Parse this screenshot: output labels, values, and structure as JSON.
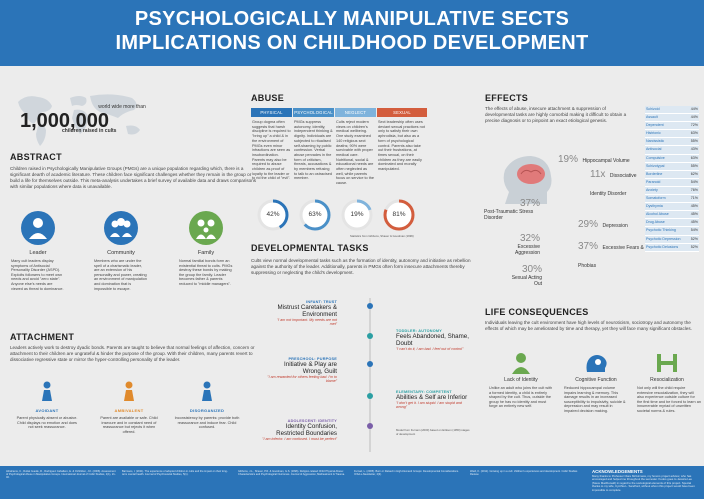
{
  "header": {
    "title_line1": "PSYCHOLOGICALLY MANIPULATIVE SECTS",
    "title_line2": "IMPLICATIONS ON CHILDHOOD DEVELOPMENT"
  },
  "stat": {
    "top": "world wide more than",
    "big": "1,000,000",
    "bottom": "children raised in cults"
  },
  "abstract": {
    "heading": "ABSTRACT",
    "text": "Children raised in Psychologically Manipulative Groups (PMGs) are a unique population regarding which, there is a significant dearth of academic literature. These children face significant challenges whether they remain in the group or build a life for themselves outside. This meta-analysis undertakes a brief survey of available data and draws comparisons with similar populations where data is unavailable.",
    "items": [
      {
        "label": "Leader",
        "text": "Many cult leaders display symptoms of Antisocial Personality Disorder (ASPD). Exploits followers to meet own needs and avoid \"zero state\". Anyone else's needs are viewed as threat to dominance.",
        "color": "#2b74b8"
      },
      {
        "label": "Community",
        "text": "Members who are under the spell of a charismatic leader, are an extension of his personality and power, creating an environment of manipulation and domination that is impossible to escape.",
        "color": "#2b74b8"
      },
      {
        "label": "Family",
        "text": "Normal familial bonds form an existential threat to cults. PMGs destroy these bonds by making the group the family. Leader becomes father & parents reduced to \"middle managers\".",
        "color": "#6aa84f"
      }
    ]
  },
  "attachment": {
    "heading": "ATTACHMENT",
    "text": "Leaders actively work to destroy dyadic bonds. Parents are taught to believe that normal feelings of affection, concern or attachment to their children are ungrateful & hinder the purpose of the group. With their children, many parents revert to dissociative regressive state or mirror the hyper-controlling personality of the leader.",
    "items": [
      {
        "label": "AVOIDANT",
        "text": "Parent physically absent or abusive. Child displays no emotion and does not seek reassurance.",
        "color": "#2b74b8"
      },
      {
        "label": "AMBIVALENT",
        "text": "Parent are available or safe. Child insecure and in constant need of reassurance but rejects it when offered.",
        "color": "#e08a2c"
      },
      {
        "label": "DISORGANIZED",
        "text": "Inconsistency by parents: provide both reassurance and induce fear. Child confused.",
        "color": "#2b74b8"
      }
    ]
  },
  "abuse": {
    "heading": "ABUSE",
    "columns": [
      {
        "label": "PHYSICAL",
        "color": "#2b74b8",
        "text": "Group dogma often suggests that harsh discipline is required to \"bring up\" a child & in the environment of PMGs even minor infractions are seen as insubordination. Parents may also be required to abuse children as proof of loyalty to the leader or to rid the child of \"evil\"."
      },
      {
        "label": "PSYCHOLOGICAL",
        "color": "#4a90c8",
        "text": "PMGs suppress autonomy, identity, independent thinking & dignity. Individuals are subjected to ritualised self-shaming by public confession. Verbal abuse pervades in the form of criticism, threats, accusations & by members refusing to talk to an ostracised member."
      },
      {
        "label": "NEGLECT",
        "color": "#7fb3dc",
        "text": "Cults reject modern views on children's medical wellbeing. One study examined 140 religious sect deaths; 90% were survivable with proper medical care. Nutritional, social & educational needs are often neglected as well, while parents focus on service to the cause."
      },
      {
        "label": "SEXUAL",
        "color": "#d35d3d",
        "text": "Sect leadership often uses deviant sexual practices not only to satisfy their own aphrodisia, but also as a form of psychological control. Parents also take out their frustrations, at times sexual, on their children as they are easily dominated and morally manipulated."
      }
    ],
    "stats": [
      {
        "value": 42,
        "label": "42%",
        "color": "#2b74b8"
      },
      {
        "value": 63,
        "label": "63%",
        "color": "#4a90c8"
      },
      {
        "value": 19,
        "label": "19%",
        "color": "#7fb3dc"
      },
      {
        "value": 81,
        "label": "81%",
        "color": "#d35d3d"
      }
    ],
    "source": "Statistics from Gibbons, Shaver & Goodman (1996)"
  },
  "development": {
    "heading": "DEVELOPMENTAL TASKS",
    "text": "Cults view normal developmental tasks such as the formation of identity, autonomy and initiative as rebellion against the authority of the leader. Additionally, parents in PMGs often form insecure attachments thereby suppressing or neglecting the child's development.",
    "stages": [
      {
        "head": "INFANT: TRUST",
        "main": "Mistrust Caretakers & Environment",
        "sub": "\"I am not important. My needs are not met\"",
        "color": "#2b74b8"
      },
      {
        "head": "TODDLER: AUTONOMY",
        "main": "Feels Abandoned, Shame, Doubt",
        "sub": "\"I can't do it, I am bad. I feel out of control\"",
        "color": "#2b9fa3"
      },
      {
        "head": "PRESCHOOL: PURPOSE",
        "main": "Initiative & Play are Wrong, Guilt",
        "sub": "\"I am rewarded for others feeling bad. I'm to blame\"",
        "color": "#2b74b8"
      },
      {
        "head": "ELEMENTARY: COMPETENT",
        "main": "Abilities & Self are Inferior",
        "sub": "\"I don't get it. I am stupid. I am stupid and wrong\"",
        "color": "#2b9fa3"
      },
      {
        "head": "ADOLESCENT: IDENTITY",
        "main": "Identity Confusion, Restricted Boundaries",
        "sub": "\"I am inferior. I am confused. I must be perfect\"",
        "color": "#7a5ea8"
      }
    ],
    "source": "Model from Furnam (2000) based on Erikson (1950) stages of development"
  },
  "effects": {
    "heading": "EFFECTS",
    "text": "The effects of abuse, insecure attachment & suppression of developmental tasks are highly comorbid making it difficult to obtain a precise diagnosis or to pinpoint an exact etiological genesis.",
    "stats": [
      {
        "num": "19%",
        "label": "Hippocampal Volume"
      },
      {
        "num": "11x",
        "label": "Dissociative Identity Disorder"
      },
      {
        "num": "37%",
        "label": "Post-Traumatic Stress Disorder"
      },
      {
        "num": "29%",
        "label": "Depression"
      },
      {
        "num": "32%",
        "label": "Excessive Aggression"
      },
      {
        "num": "37%",
        "label": "Excessive Fears & Phobias"
      },
      {
        "num": "30%",
        "label": "Sexual Acting Out"
      }
    ],
    "bars": [
      {
        "label": "Schizoid",
        "value": "44%"
      },
      {
        "label": "Assault",
        "value": "44%"
      },
      {
        "label": "Dependent",
        "value": "72%"
      },
      {
        "label": "Histrionic",
        "value": "63%"
      },
      {
        "label": "Narcissistic",
        "value": "55%"
      },
      {
        "label": "Antisocial",
        "value": "43%"
      },
      {
        "label": "Compulsive",
        "value": "63%"
      },
      {
        "label": "Schizotypal",
        "value": "55%"
      },
      {
        "label": "Borderline",
        "value": "62%"
      },
      {
        "label": "Paranoid",
        "value": "54%"
      },
      {
        "label": "Anxiety",
        "value": "76%"
      },
      {
        "label": "Somatoform",
        "value": "71%"
      },
      {
        "label": "Dysthymia",
        "value": "45%"
      },
      {
        "label": "Alcohol Abuse",
        "value": "45%"
      },
      {
        "label": "Drug Abuse",
        "value": "45%"
      },
      {
        "label": "Psychotic Thinking",
        "value": "54%"
      },
      {
        "label": "Psychotic Depression",
        "value": "52%"
      },
      {
        "label": "Psychotic Delusions",
        "value": "52%"
      }
    ]
  },
  "life": {
    "heading": "LIFE CONSEQUENCES",
    "text": "Individuals leaving the cult environment have high levels of neuroticism, sociotropy and autonomy the effects of which may be ameliorated by time and therapy, yet they will face many significant obstacles.",
    "items": [
      {
        "label": "Lack of Identity",
        "text": "Unlike an adult who joins the cult with a formed identity, a child is entirely shaped by the cult. Thus, outside the group he has no identity and must forge an entirely new self."
      },
      {
        "label": "Cognitive Function",
        "text": "Reduced hippocampal volume impairs learning & memory. This damage results in an increased susceptibility to impulsivity, suicide & depression and may result in impaired decision making."
      },
      {
        "label": "Resocialization",
        "text": "Not only will the child require extensive resocialization, they will also experience outside culture for the first time and be forced to learn an innumerable myriad of unwritten societal norms & rules."
      }
    ]
  },
  "footer": {
    "refs": [
      "Abrahams, C., Ruttat Guede, R., Rodriguez Caballero, E. & Ochildren, J.K. (2006). Assessment of Psychological Abuse in Manipulative Groups. International Journal of Cultic Studies, 1(1), 21-40.",
      "Barrosos, I. (2011). The experience of adopted children in cults and the impact on their long-term mental health. Journal of Psychosocial Studies, 5(1).",
      "Gibbons, J.L., Shaver, P.R. & Goodman, G.S. (1996). Religion-related Child Physical Abuse: Characteristics and Psychological Outcomes. Journal of Aggression, Maltreatment & Trauma.",
      "Furnari, L. (2005). Born or Raised in High-Demand Groups: Developmental Considerations. ICSA e-Newsletter, 4(3).",
      "Ward, K. (2011). Growing up in a cult: children's experiences and development. Cultic Studies Review.",
      "Zerach, G. (2013). Cult membership and the impact on children. Journal of Child Psychology."
    ],
    "ack_heading": "ACKNOWLEDGEMENTS",
    "ack_text": "Many thanks to Professor Clare McGinness, my honors project advisor, who has encouraged and helped me throughout the semester. Kudos goes to Jessica Lee (Steve MacDonald) in regard to the sociological elements of this project. Special thanks to my wife, Cynthia L. Sandford, without whom this project would have been impossible to complete."
  }
}
